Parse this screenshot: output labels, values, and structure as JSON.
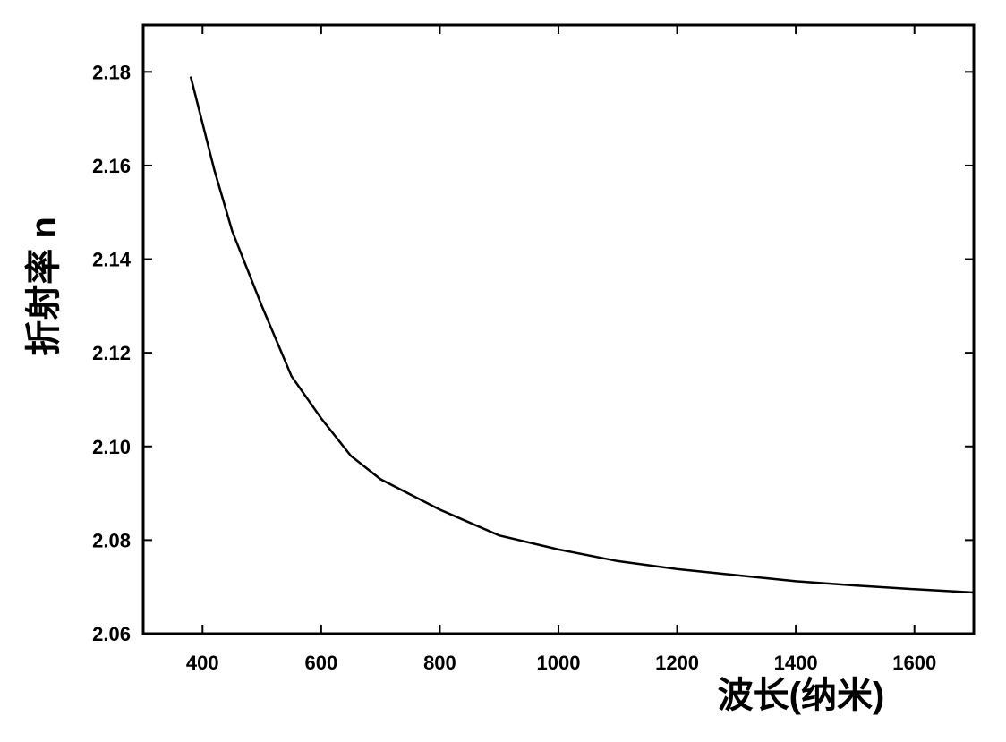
{
  "chart_data": {
    "type": "line",
    "x_label": "波长(纳米)",
    "y_label": "折射率 n",
    "x": [
      380,
      400,
      420,
      450,
      500,
      550,
      600,
      650,
      700,
      800,
      900,
      1000,
      1100,
      1200,
      1300,
      1400,
      1500,
      1600,
      1700
    ],
    "series": [
      {
        "color": "#000000",
        "values": [
          2.179,
          2.169,
          2.159,
          2.146,
          2.13,
          2.115,
          2.106,
          2.098,
          2.093,
          2.0865,
          2.081,
          2.078,
          2.0755,
          2.0738,
          2.0725,
          2.0712,
          2.0703,
          2.0695,
          2.0688
        ]
      }
    ],
    "xlim": [
      300,
      1700
    ],
    "ylim": [
      2.06,
      2.19
    ],
    "xticks": [
      400,
      600,
      800,
      1000,
      1200,
      1400,
      1600
    ],
    "yticks": [
      2.06,
      2.08,
      {
        "value": 2.1,
        "label": "2.10"
      },
      2.12,
      2.14,
      2.16,
      2.18
    ]
  }
}
